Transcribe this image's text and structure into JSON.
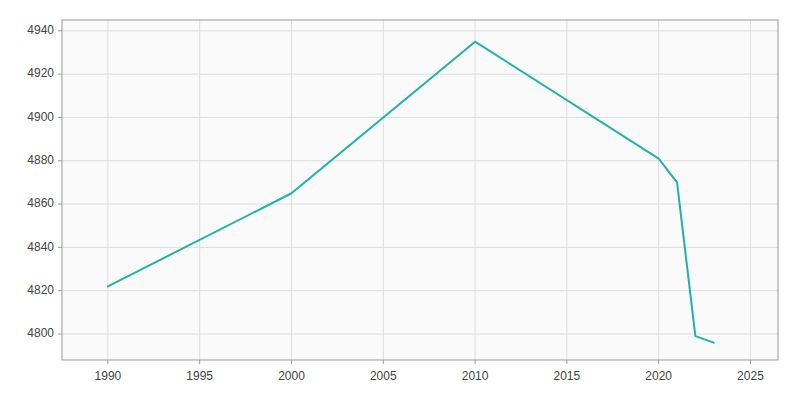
{
  "chart_data": {
    "type": "line",
    "x": [
      1990,
      2000,
      2010,
      2020,
      2021,
      2022,
      2023
    ],
    "values": [
      4822,
      4865,
      4935,
      4881,
      4870,
      4799,
      4796
    ],
    "color": "#20B2AA",
    "xlim": [
      1987.5,
      2026.5
    ],
    "ylim": [
      4788,
      4945
    ],
    "xticks": [
      1990,
      1995,
      2000,
      2005,
      2010,
      2015,
      2020,
      2025
    ],
    "yticks": [
      4800,
      4820,
      4840,
      4860,
      4880,
      4900,
      4920,
      4940
    ],
    "grid": true
  }
}
